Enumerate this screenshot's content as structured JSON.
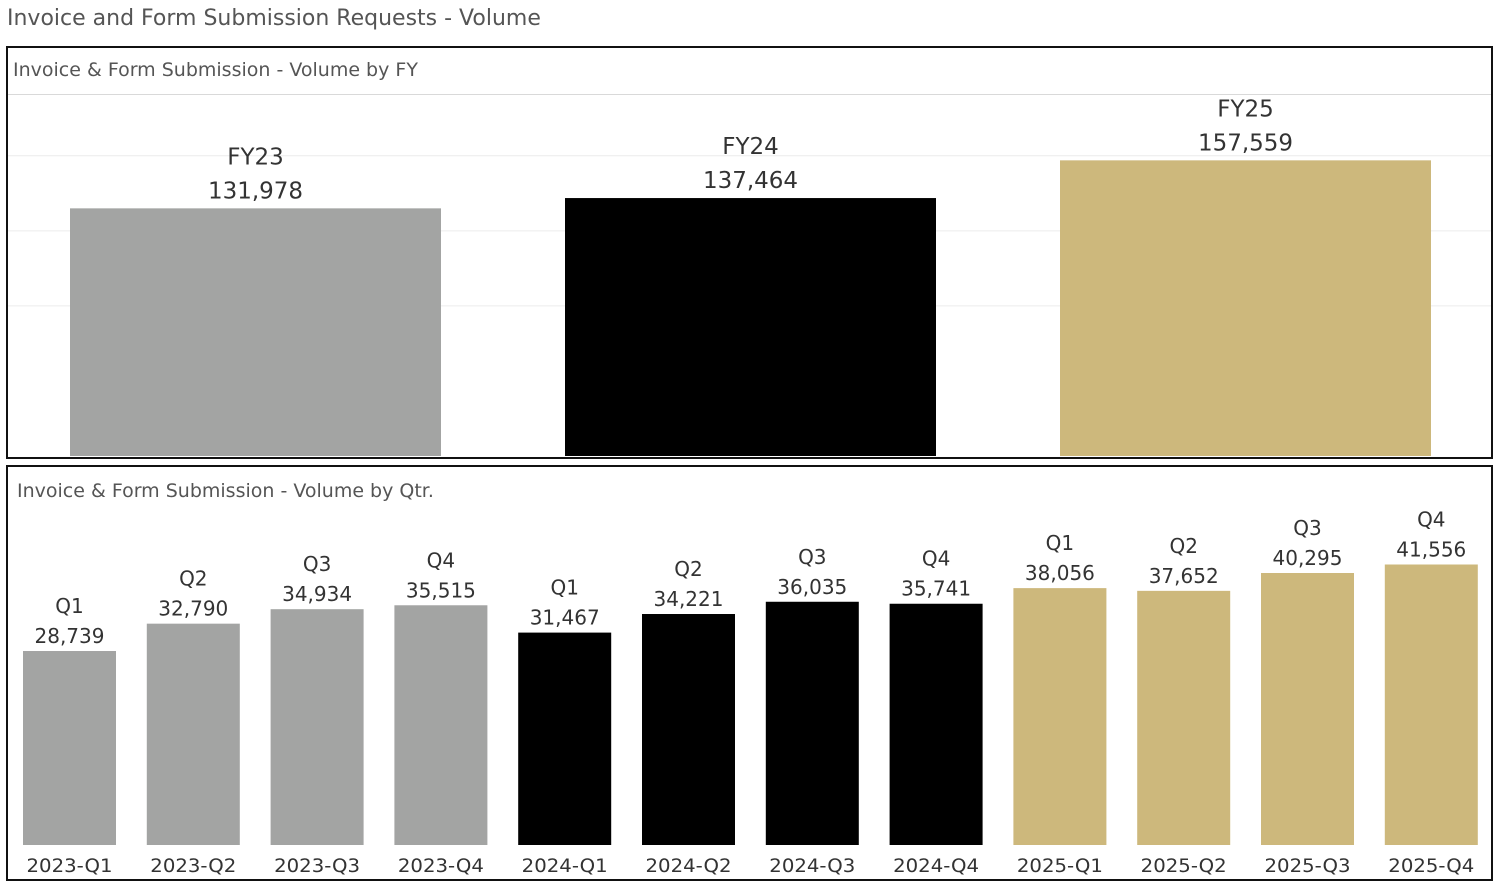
{
  "dashboard": {
    "title": "Invoice and Form Submission Requests - Volume"
  },
  "colors": {
    "FY23": "#a3a4a3",
    "FY24": "#000000",
    "FY25": "#cdb87c",
    "gridline": "#ececec"
  },
  "chart_data": [
    {
      "type": "bar",
      "title": "Invoice & Form Submission - Volume by FY",
      "categories": [
        "FY23",
        "FY24",
        "FY25"
      ],
      "values": [
        131978,
        137464,
        157559
      ],
      "value_labels": [
        "131,978",
        "137,464",
        "157,559"
      ],
      "ylim": [
        0,
        170000
      ],
      "grid": true,
      "legend": "none",
      "xlabel": "",
      "ylabel": ""
    },
    {
      "type": "bar",
      "title": "Invoice & Form Submission - Volume by Qtr.",
      "categories": [
        "2023-Q1",
        "2023-Q2",
        "2023-Q3",
        "2023-Q4",
        "2024-Q1",
        "2024-Q2",
        "2024-Q3",
        "2024-Q4",
        "2025-Q1",
        "2025-Q2",
        "2025-Q3",
        "2025-Q4"
      ],
      "quarter_labels": [
        "Q1",
        "Q2",
        "Q3",
        "Q4",
        "Q1",
        "Q2",
        "Q3",
        "Q4",
        "Q1",
        "Q2",
        "Q3",
        "Q4"
      ],
      "fiscal_year": [
        "FY23",
        "FY23",
        "FY23",
        "FY23",
        "FY24",
        "FY24",
        "FY24",
        "FY24",
        "FY25",
        "FY25",
        "FY25",
        "FY25"
      ],
      "values": [
        28739,
        32790,
        34934,
        35515,
        31467,
        34221,
        36035,
        35741,
        38056,
        37652,
        40295,
        41556
      ],
      "value_labels": [
        "28,739",
        "32,790",
        "34,934",
        "35,515",
        "31,467",
        "34,221",
        "36,035",
        "35,741",
        "38,056",
        "37,652",
        "40,295",
        "41,556"
      ],
      "ylim": [
        0,
        48000
      ],
      "grid": false,
      "legend": "none",
      "xlabel": "",
      "ylabel": ""
    }
  ]
}
